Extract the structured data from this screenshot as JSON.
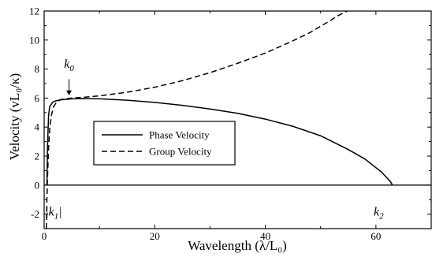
{
  "chart_data": {
    "type": "line",
    "title": "",
    "xlabel": "Wavelength (λ/L₀)",
    "ylabel": "Velocity (vL₀/κ)",
    "xlim": [
      0,
      70
    ],
    "ylim": [
      -3,
      12
    ],
    "xticks": [
      0,
      20,
      40,
      60
    ],
    "yticks": [
      -2,
      0,
      2,
      4,
      6,
      8,
      10,
      12
    ],
    "grid": false,
    "legend_position": "center-left",
    "series": [
      {
        "name": "Phase Velocity",
        "style": "solid",
        "x": [
          0.5,
          0.6,
          0.8,
          1.0,
          1.5,
          2,
          3,
          5,
          7,
          10,
          15,
          20,
          25,
          30,
          35,
          40,
          45,
          50,
          55,
          58,
          60,
          61,
          62,
          62.6,
          63
        ],
        "y": [
          0.0,
          2.5,
          4.8,
          5.4,
          5.7,
          5.8,
          5.88,
          5.95,
          5.97,
          5.95,
          5.85,
          5.7,
          5.5,
          5.25,
          4.95,
          4.55,
          4.05,
          3.4,
          2.45,
          1.8,
          1.2,
          0.9,
          0.5,
          0.25,
          0.0
        ]
      },
      {
        "name": "Group Velocity",
        "style": "dashed",
        "x": [
          0.4,
          0.5,
          0.6,
          0.8,
          1.0,
          1.3,
          1.7,
          2.2,
          3,
          4,
          5,
          7,
          10,
          15,
          20,
          25,
          30,
          35,
          40,
          45,
          48,
          50,
          52,
          53,
          54,
          54.8
        ],
        "y": [
          -3.0,
          -1.0,
          0.5,
          2.5,
          3.8,
          4.8,
          5.4,
          5.7,
          5.9,
          5.95,
          6.0,
          6.05,
          6.15,
          6.4,
          6.75,
          7.2,
          7.75,
          8.4,
          9.1,
          9.95,
          10.5,
          10.95,
          11.4,
          11.65,
          11.85,
          12.0
        ]
      }
    ],
    "annotations": [
      {
        "id": "k0",
        "base": "k",
        "sub": "0",
        "x": 4.5,
        "y": 8.1,
        "arrow_from_y": 7.3,
        "arrow_to_y": 6.2
      },
      {
        "id": "k1",
        "base": "|k",
        "sub": "1",
        "suffix": "|",
        "x": 1.7,
        "y": -2.1
      },
      {
        "id": "k2",
        "base": "k",
        "sub": "2",
        "x": 60.5,
        "y": -2.1
      }
    ]
  }
}
